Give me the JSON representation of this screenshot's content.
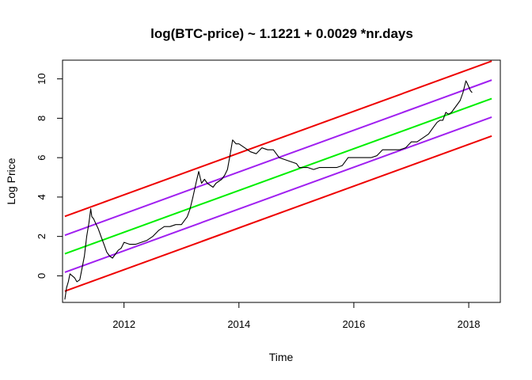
{
  "chart_data": {
    "type": "line",
    "title": "log(BTC-price) ~ 1.1221 + 0.0029 *nr.days",
    "xlabel": "Time",
    "ylabel": "Log Price",
    "xlim": [
      2010.93,
      2018.55
    ],
    "ylim": [
      -1.35,
      10.95
    ],
    "x_ticks": [
      2012,
      2014,
      2016,
      2018
    ],
    "y_ticks": [
      0,
      2,
      4,
      6,
      8,
      10
    ],
    "grid": false,
    "legend": "none",
    "series": [
      {
        "color": "#000000",
        "x": [
          2010.97,
          2011.0,
          2011.03,
          2011.06,
          2011.1,
          2011.14,
          2011.18,
          2011.23,
          2011.27,
          2011.31,
          2011.35,
          2011.39,
          2011.42,
          2011.44,
          2011.47,
          2011.5,
          2011.55,
          2011.6,
          2011.65,
          2011.7,
          2011.75,
          2011.8,
          2011.85,
          2011.9,
          2011.95,
          2012.0,
          2012.1,
          2012.2,
          2012.3,
          2012.4,
          2012.5,
          2012.6,
          2012.7,
          2012.8,
          2012.9,
          2013.0,
          2013.1,
          2013.15,
          2013.2,
          2013.26,
          2013.3,
          2013.35,
          2013.4,
          2013.45,
          2013.5,
          2013.55,
          2013.6,
          2013.65,
          2013.7,
          2013.75,
          2013.8,
          2013.85,
          2013.89,
          2013.92,
          2013.95,
          2014.0,
          2014.1,
          2014.15,
          2014.2,
          2014.3,
          2014.4,
          2014.5,
          2014.6,
          2014.7,
          2014.8,
          2014.9,
          2015.0,
          2015.05,
          2015.1,
          2015.2,
          2015.3,
          2015.4,
          2015.5,
          2015.6,
          2015.7,
          2015.8,
          2015.85,
          2015.9,
          2016.0,
          2016.1,
          2016.2,
          2016.3,
          2016.4,
          2016.5,
          2016.6,
          2016.7,
          2016.8,
          2016.9,
          2017.0,
          2017.1,
          2017.2,
          2017.3,
          2017.4,
          2017.45,
          2017.5,
          2017.55,
          2017.6,
          2017.65,
          2017.7,
          2017.75,
          2017.8,
          2017.85,
          2017.9,
          2017.95,
          2017.97,
          2018.0,
          2018.03,
          2018.06
        ],
        "values": [
          -1.2,
          -0.6,
          -0.3,
          0.1,
          0.0,
          -0.1,
          -0.3,
          -0.2,
          0.4,
          1.0,
          2.0,
          2.7,
          3.4,
          3.0,
          2.9,
          2.7,
          2.4,
          2.0,
          1.6,
          1.2,
          1.0,
          0.9,
          1.1,
          1.3,
          1.4,
          1.7,
          1.6,
          1.6,
          1.7,
          1.8,
          2.0,
          2.3,
          2.5,
          2.5,
          2.6,
          2.6,
          3.0,
          3.4,
          4.0,
          4.8,
          5.3,
          4.7,
          4.9,
          4.7,
          4.6,
          4.5,
          4.7,
          4.8,
          4.9,
          5.1,
          5.4,
          6.2,
          6.9,
          6.8,
          6.7,
          6.7,
          6.5,
          6.4,
          6.3,
          6.2,
          6.5,
          6.4,
          6.4,
          6.0,
          5.9,
          5.8,
          5.7,
          5.5,
          5.5,
          5.5,
          5.4,
          5.5,
          5.5,
          5.5,
          5.5,
          5.6,
          5.8,
          6.0,
          6.0,
          6.0,
          6.0,
          6.0,
          6.1,
          6.4,
          6.4,
          6.4,
          6.4,
          6.5,
          6.8,
          6.8,
          7.0,
          7.2,
          7.6,
          7.8,
          7.9,
          7.9,
          8.3,
          8.2,
          8.3,
          8.5,
          8.7,
          8.9,
          9.3,
          9.9,
          9.8,
          9.6,
          9.4,
          9.3
        ]
      }
    ],
    "bands": [
      {
        "color": "#ee0000",
        "x": [
          2010.97,
          2018.4
        ],
        "values": [
          3.02,
          10.9
        ]
      },
      {
        "color": "#a020f0",
        "x": [
          2010.97,
          2018.4
        ],
        "values": [
          2.06,
          9.94
        ]
      },
      {
        "color": "#00ee00",
        "x": [
          2010.97,
          2018.4
        ],
        "values": [
          1.12,
          9.0
        ]
      },
      {
        "color": "#a020f0",
        "x": [
          2010.97,
          2018.4
        ],
        "values": [
          0.18,
          8.06
        ]
      },
      {
        "color": "#ee0000",
        "x": [
          2010.97,
          2018.4
        ],
        "values": [
          -0.78,
          7.1
        ]
      }
    ]
  }
}
